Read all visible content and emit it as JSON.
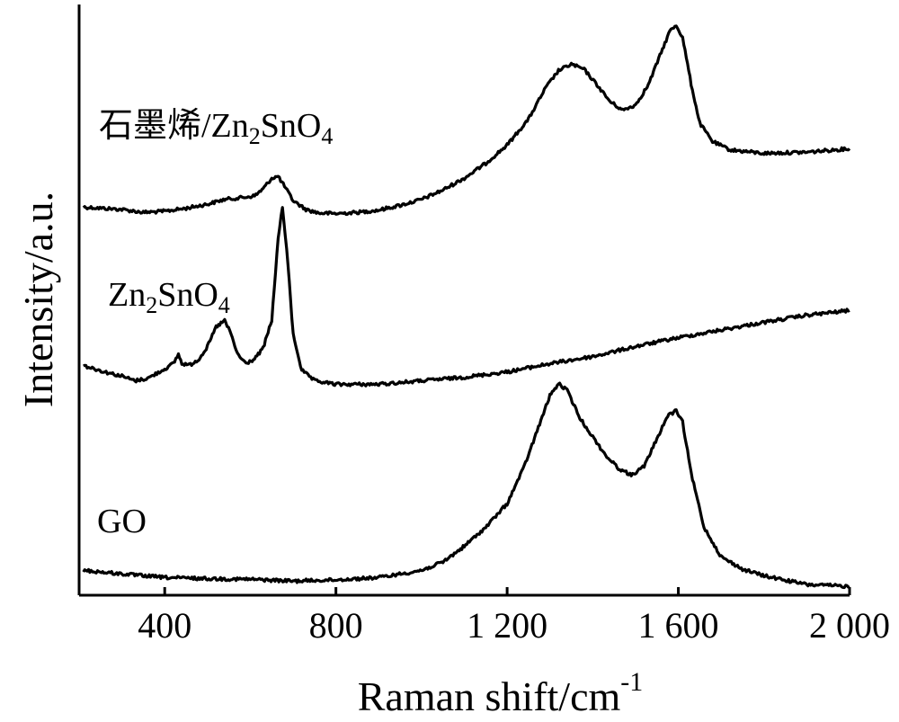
{
  "chart_data": {
    "type": "line",
    "xlabel": "Raman shift/cm",
    "xlabel_sup": "-1",
    "ylabel": "Intensity/a.u.",
    "xlim": [
      200,
      2000
    ],
    "ylim": [
      0,
      100
    ],
    "x_ticks": [
      400,
      800,
      1200,
      1600,
      2000
    ],
    "x_tick_labels": [
      "400",
      "800",
      "1 200",
      "1 600",
      "2 000"
    ],
    "y_ticks_shown": false,
    "grid": false,
    "series": [
      {
        "name": "石墨烯/Zn2SnO4",
        "label_parts": [
          {
            "text": "石墨烯/Zn",
            "sub": false
          },
          {
            "text": "2",
            "sub": true
          },
          {
            "text": "SnO",
            "sub": false
          },
          {
            "text": "4",
            "sub": true
          }
        ],
        "color": "#000000",
        "points": [
          [
            210,
            65.7
          ],
          [
            300,
            65.3
          ],
          [
            350,
            64.8
          ],
          [
            400,
            65.0
          ],
          [
            450,
            65.5
          ],
          [
            500,
            66.2
          ],
          [
            540,
            67.0
          ],
          [
            580,
            67.3
          ],
          [
            610,
            67.6
          ],
          [
            630,
            68.8
          ],
          [
            650,
            70.6
          ],
          [
            665,
            70.9
          ],
          [
            680,
            69.2
          ],
          [
            700,
            66.8
          ],
          [
            730,
            65.3
          ],
          [
            760,
            64.7
          ],
          [
            800,
            64.6
          ],
          [
            850,
            64.8
          ],
          [
            900,
            65.2
          ],
          [
            950,
            66.0
          ],
          [
            1000,
            67.0
          ],
          [
            1050,
            68.6
          ],
          [
            1100,
            70.6
          ],
          [
            1150,
            73.1
          ],
          [
            1200,
            76.2
          ],
          [
            1250,
            80.6
          ],
          [
            1290,
            85.9
          ],
          [
            1320,
            88.8
          ],
          [
            1350,
            89.9
          ],
          [
            1380,
            89.0
          ],
          [
            1410,
            86.4
          ],
          [
            1440,
            83.6
          ],
          [
            1470,
            82.1
          ],
          [
            1500,
            83.0
          ],
          [
            1530,
            86.4
          ],
          [
            1560,
            91.9
          ],
          [
            1580,
            95.5
          ],
          [
            1595,
            96.5
          ],
          [
            1610,
            94.4
          ],
          [
            1630,
            86.5
          ],
          [
            1650,
            79.9
          ],
          [
            1680,
            76.8
          ],
          [
            1720,
            75.4
          ],
          [
            1800,
            74.8
          ],
          [
            1900,
            75.0
          ],
          [
            2000,
            75.6
          ]
        ]
      },
      {
        "name": "Zn2SnO4",
        "label_parts": [
          {
            "text": "Zn",
            "sub": false
          },
          {
            "text": "2",
            "sub": true
          },
          {
            "text": "SnO",
            "sub": false
          },
          {
            "text": "4",
            "sub": true
          }
        ],
        "color": "#000000",
        "points": [
          [
            210,
            38.9
          ],
          [
            260,
            37.8
          ],
          [
            300,
            37.1
          ],
          [
            330,
            36.3
          ],
          [
            360,
            36.7
          ],
          [
            400,
            38.3
          ],
          [
            420,
            39.2
          ],
          [
            432,
            40.8
          ],
          [
            440,
            39.2
          ],
          [
            460,
            39.0
          ],
          [
            480,
            40.0
          ],
          [
            500,
            42.1
          ],
          [
            520,
            45.4
          ],
          [
            540,
            46.5
          ],
          [
            555,
            44.2
          ],
          [
            570,
            40.8
          ],
          [
            590,
            39.2
          ],
          [
            610,
            40.0
          ],
          [
            630,
            41.8
          ],
          [
            650,
            46.5
          ],
          [
            665,
            60.4
          ],
          [
            675,
            65.7
          ],
          [
            685,
            58.7
          ],
          [
            700,
            44.2
          ],
          [
            720,
            38.1
          ],
          [
            750,
            36.3
          ],
          [
            800,
            35.7
          ],
          [
            900,
            35.7
          ],
          [
            1000,
            36.3
          ],
          [
            1100,
            36.9
          ],
          [
            1200,
            37.8
          ],
          [
            1300,
            39.2
          ],
          [
            1400,
            40.4
          ],
          [
            1500,
            42.1
          ],
          [
            1600,
            43.6
          ],
          [
            1700,
            44.9
          ],
          [
            1800,
            46.2
          ],
          [
            1900,
            47.4
          ],
          [
            2000,
            48.2
          ]
        ]
      },
      {
        "name": "GO",
        "label_parts": [
          {
            "text": "GO",
            "sub": false
          }
        ],
        "color": "#000000",
        "points": [
          [
            210,
            4.2
          ],
          [
            300,
            3.6
          ],
          [
            400,
            3.0
          ],
          [
            500,
            2.8
          ],
          [
            600,
            2.7
          ],
          [
            700,
            2.4
          ],
          [
            800,
            2.6
          ],
          [
            900,
            3.0
          ],
          [
            1000,
            4.2
          ],
          [
            1050,
            5.6
          ],
          [
            1100,
            8.3
          ],
          [
            1150,
            11.5
          ],
          [
            1200,
            15.5
          ],
          [
            1240,
            21.8
          ],
          [
            1270,
            27.8
          ],
          [
            1300,
            33.8
          ],
          [
            1320,
            35.8
          ],
          [
            1340,
            34.7
          ],
          [
            1370,
            30.0
          ],
          [
            1400,
            26.8
          ],
          [
            1430,
            23.7
          ],
          [
            1460,
            21.5
          ],
          [
            1490,
            20.3
          ],
          [
            1520,
            21.8
          ],
          [
            1550,
            26.5
          ],
          [
            1575,
            30.4
          ],
          [
            1595,
            31.2
          ],
          [
            1610,
            29.3
          ],
          [
            1630,
            20.6
          ],
          [
            1660,
            11.5
          ],
          [
            1700,
            6.5
          ],
          [
            1750,
            4.4
          ],
          [
            1800,
            3.3
          ],
          [
            1900,
            1.8
          ],
          [
            2000,
            1.5
          ]
        ]
      }
    ]
  }
}
